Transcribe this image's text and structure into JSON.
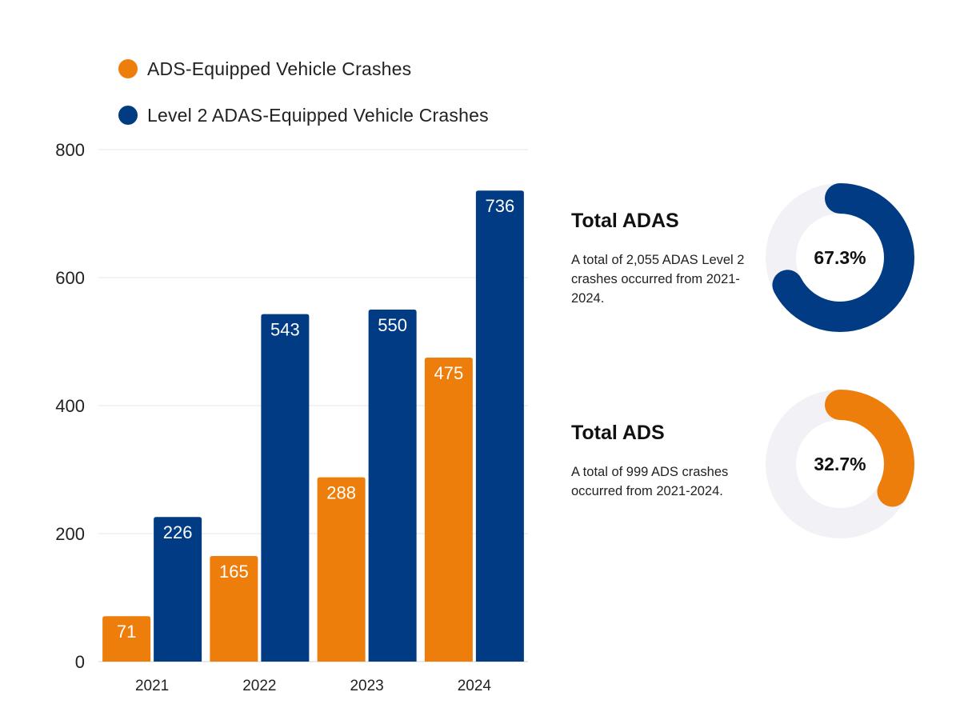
{
  "legend": {
    "items": [
      {
        "label": "ADS-Equipped Vehicle Crashes",
        "color": "#EE7E0B"
      },
      {
        "label": "Level 2 ADAS-Equipped Vehicle Crashes",
        "color": "#003B83"
      }
    ]
  },
  "chart_data": {
    "type": "bar",
    "categories": [
      "2021",
      "2022",
      "2023",
      "2024"
    ],
    "series": [
      {
        "name": "ADS-Equipped Vehicle Crashes",
        "color": "#EE7E0B",
        "values": [
          71,
          165,
          288,
          475
        ]
      },
      {
        "name": "Level 2 ADAS-Equipped Vehicle Crashes",
        "color": "#003B83",
        "values": [
          226,
          543,
          550,
          736
        ]
      }
    ],
    "yticks": [
      0,
      200,
      400,
      600,
      800
    ],
    "ylim": [
      0,
      800
    ],
    "grid": true,
    "legend_position": "top-left"
  },
  "summary": {
    "adas": {
      "title": "Total ADAS",
      "text": "A total of 2,055 ADAS Level 2 crashes occurred from 2021-2024.",
      "percent_label": "67.3%",
      "percent": 67.3,
      "color": "#003B83"
    },
    "ads": {
      "title": "Total ADS",
      "text": "A total of 999 ADS crashes occurred from 2021-2024.",
      "percent_label": "32.7%",
      "percent": 32.7,
      "color": "#EE7E0B"
    },
    "track_color": "#F2F1F6"
  }
}
